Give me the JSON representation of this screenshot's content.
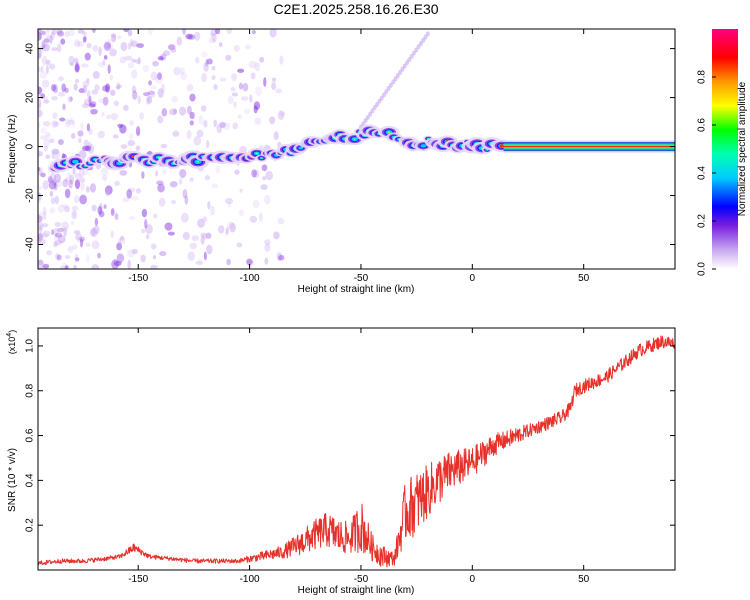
{
  "title": "C2E1.2025.258.16.26.E30",
  "chart_data": [
    {
      "type": "heatmap",
      "title": "C2E1.2025.258.16.26.E30",
      "xlabel": "Height of straight line (km)",
      "ylabel": "Frequency (Hz)",
      "xlim": [
        -195,
        91
      ],
      "ylim": [
        -50,
        48
      ],
      "xticks": [
        -150,
        -100,
        -50,
        0,
        50
      ],
      "xtick_labels": [
        "-150",
        "-100",
        "-50",
        "0",
        "50"
      ],
      "yticks": [
        -40,
        -20,
        0,
        20,
        40
      ],
      "ytick_labels": [
        "-40",
        "-20",
        "0",
        "20",
        "40"
      ],
      "colorbar": {
        "label": "Normalized spectral amplitude",
        "range": [
          0,
          1
        ],
        "ticks": [
          0.0,
          0.2,
          0.4,
          0.6,
          0.8
        ],
        "tick_labels": [
          "0.0",
          "0.2",
          "0.4",
          "0.6",
          "0.8"
        ]
      },
      "ridge": {
        "x": [
          -195,
          -180,
          -165,
          -150,
          -140,
          -125,
          -110,
          -100,
          -90,
          -80,
          -70,
          -65,
          -60,
          -55,
          -50,
          -45,
          -40,
          -35,
          -30,
          -25,
          -20,
          -15,
          -10,
          -5,
          0,
          5,
          10,
          15,
          91
        ],
        "y": [
          -8,
          -7,
          -6,
          -5,
          -6,
          -5,
          -4,
          -4,
          -3,
          -2,
          2,
          4,
          4,
          2,
          5,
          7,
          6,
          4,
          2,
          1,
          2,
          0,
          1,
          0,
          1,
          -1,
          0,
          0,
          0
        ]
      }
    },
    {
      "type": "line",
      "xlabel": "Height of straight line (km)",
      "ylabel": "SNR (10 * v/v)",
      "y_multiplier": "(x10",
      "y_multiplier_exp": "4",
      "xlim": [
        -195,
        91
      ],
      "ylim": [
        0,
        1.08
      ],
      "xticks": [
        -150,
        -100,
        -50,
        0,
        50
      ],
      "xtick_labels": [
        "-150",
        "-100",
        "-50",
        "0",
        "50"
      ],
      "yticks": [
        0.2,
        0.4,
        0.6,
        0.8,
        1.0
      ],
      "ytick_labels": [
        "0.2",
        "0.4",
        "0.6",
        "0.8",
        "1.0"
      ],
      "series": [
        {
          "name": "SNR",
          "color": "#e8302a",
          "x": [
            -195,
            -185,
            -175,
            -165,
            -158,
            -152,
            -145,
            -135,
            -125,
            -115,
            -105,
            -95,
            -85,
            -75,
            -70,
            -65,
            -60,
            -55,
            -50,
            -45,
            -40,
            -35,
            -30,
            -25,
            -20,
            -15,
            -10,
            -5,
            0,
            5,
            10,
            15,
            20,
            25,
            30,
            35,
            40,
            44,
            46,
            50,
            55,
            60,
            65,
            70,
            75,
            80,
            85,
            91
          ],
          "y": [
            0.03,
            0.04,
            0.04,
            0.05,
            0.06,
            0.1,
            0.06,
            0.05,
            0.04,
            0.04,
            0.04,
            0.06,
            0.08,
            0.13,
            0.16,
            0.18,
            0.15,
            0.14,
            0.2,
            0.1,
            0.06,
            0.05,
            0.26,
            0.3,
            0.35,
            0.4,
            0.44,
            0.46,
            0.48,
            0.52,
            0.56,
            0.58,
            0.6,
            0.62,
            0.64,
            0.66,
            0.68,
            0.72,
            0.8,
            0.82,
            0.84,
            0.86,
            0.9,
            0.94,
            0.98,
            1.0,
            1.02,
            1.01
          ],
          "noise": [
            0.01,
            0.01,
            0.01,
            0.01,
            0.01,
            0.02,
            0.01,
            0.01,
            0.01,
            0.01,
            0.01,
            0.02,
            0.03,
            0.06,
            0.07,
            0.08,
            0.08,
            0.07,
            0.12,
            0.06,
            0.05,
            0.03,
            0.14,
            0.14,
            0.12,
            0.11,
            0.09,
            0.08,
            0.07,
            0.06,
            0.05,
            0.04,
            0.04,
            0.03,
            0.03,
            0.03,
            0.03,
            0.03,
            0.03,
            0.03,
            0.03,
            0.03,
            0.03,
            0.03,
            0.03,
            0.03,
            0.03,
            0.03
          ]
        }
      ]
    }
  ]
}
